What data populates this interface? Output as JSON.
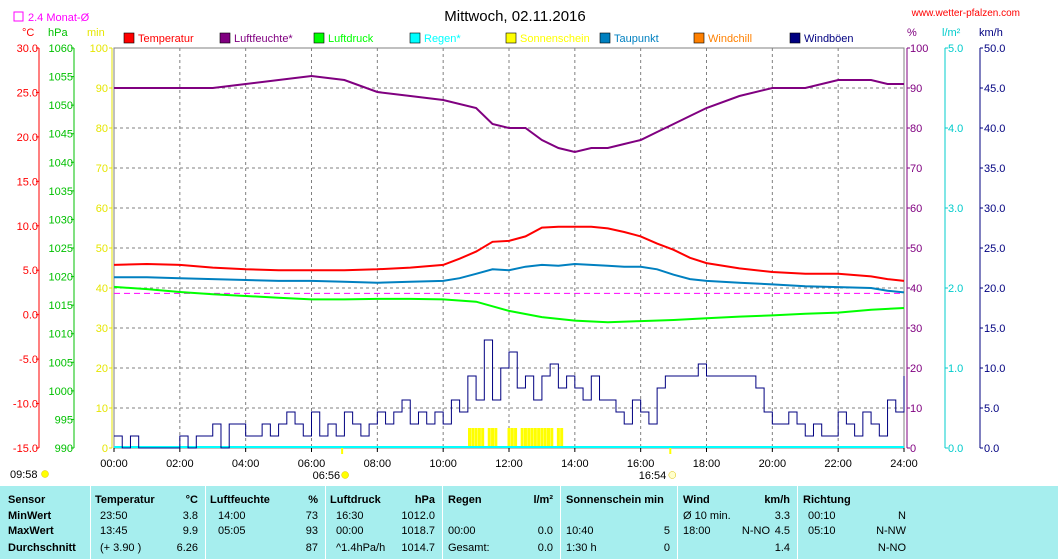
{
  "chart_data": {
    "type": "line",
    "title": "Mittwoch, 02.11.2016",
    "website": "www.wetter-pfalzen.com",
    "monthly_avg_label": "2.4 Monat-Ø",
    "monthly_avg_value": 2.4,
    "x_tick_labels": [
      "00:00",
      "02:00",
      "04:00",
      "06:00",
      "08:00",
      "10:00",
      "12:00",
      "14:00",
      "16:00",
      "18:00",
      "20:00",
      "22:00",
      "24:00"
    ],
    "xlim": [
      0,
      24
    ],
    "sunrise": "06:56",
    "sunset": "16:54",
    "sunrise_h": 6.93,
    "sunset_h": 16.9,
    "moonrise": "09:58",
    "moonset": "",
    "axes": {
      "temp": {
        "unit": "°C",
        "min": -15,
        "max": 30,
        "step": 5,
        "labels": [
          "-15.0",
          "-10.0",
          "-5.0",
          "0.0",
          "5.0",
          "10.0",
          "15.0",
          "20.0",
          "25.0",
          "30.0"
        ],
        "color": "#ff0000"
      },
      "press": {
        "unit": "hPa",
        "min": 990,
        "max": 1060,
        "step": 5,
        "labels": [
          "990",
          "995",
          "1000",
          "1005",
          "1010",
          "1015",
          "1020",
          "1025",
          "1030",
          "1035",
          "1040",
          "1045",
          "1050",
          "1055",
          "1060"
        ],
        "color": "#00c000"
      },
      "sun": {
        "unit": "min",
        "min": 0,
        "max": 100,
        "step": 10,
        "labels": [
          "0",
          "10",
          "20",
          "30",
          "40",
          "50",
          "60",
          "70",
          "80",
          "90",
          "100"
        ],
        "color": "#e6e600"
      },
      "hum": {
        "unit": "%",
        "min": 0,
        "max": 100,
        "step": 10,
        "labels": [
          "0",
          "10",
          "20",
          "30",
          "40",
          "50",
          "60",
          "70",
          "80",
          "90",
          "100"
        ],
        "color": "#800080"
      },
      "rain": {
        "unit": "l/m²",
        "min": 0,
        "max": 5,
        "step": 1,
        "labels": [
          "0.0",
          "1.0",
          "2.0",
          "3.0",
          "4.0",
          "5.0"
        ],
        "color": "#00cccc"
      },
      "wind": {
        "unit": "km/h",
        "min": 0,
        "max": 50,
        "step": 5,
        "labels": [
          "0.0",
          "5.0",
          "10.0",
          "15.0",
          "20.0",
          "25.0",
          "30.0",
          "35.0",
          "40.0",
          "45.0",
          "50.0"
        ],
        "color": "#000080"
      }
    },
    "legend": [
      {
        "name": "Temperatur",
        "color": "#ff0000"
      },
      {
        "name": "Luftfeuchte*",
        "color": "#800080"
      },
      {
        "name": "Luftdruck",
        "color": "#00ff00"
      },
      {
        "name": "Regen*",
        "color": "#00ffff"
      },
      {
        "name": "Sonnenschein",
        "color": "#ffff00"
      },
      {
        "name": "Taupunkt",
        "color": "#0080c0"
      },
      {
        "name": "Windchill",
        "color": "#ff8000"
      },
      {
        "name": "Windböen",
        "color": "#000080"
      }
    ],
    "series": [
      {
        "name": "Temperatur",
        "axis": "temp",
        "color": "#ff0000",
        "x": [
          0,
          1,
          2,
          3,
          4,
          5,
          6,
          7,
          8,
          9,
          10,
          10.5,
          11,
          11.5,
          12,
          12.5,
          13,
          13.5,
          14,
          14.5,
          15,
          15.5,
          16,
          16.5,
          17,
          17.5,
          18,
          19,
          20,
          21,
          22,
          23,
          23.5,
          24
        ],
        "y": [
          5.6,
          5.7,
          5.6,
          5.3,
          5.1,
          5.0,
          5.0,
          5.0,
          5.1,
          5.3,
          5.6,
          6.3,
          7.1,
          8.2,
          8.3,
          8.8,
          9.8,
          9.9,
          9.9,
          9.9,
          9.7,
          9.3,
          8.8,
          8.0,
          7.3,
          6.4,
          5.8,
          5.2,
          4.8,
          4.6,
          4.6,
          4.3,
          4.0,
          3.8
        ]
      },
      {
        "name": "Luftfeuchte",
        "axis": "hum",
        "color": "#800080",
        "x": [
          0,
          1,
          2,
          3,
          4,
          5,
          6,
          7,
          8,
          9,
          10,
          11,
          11.5,
          12,
          12.5,
          13,
          13.5,
          14,
          14.5,
          15,
          15.5,
          16,
          16.5,
          17,
          17.5,
          18,
          19,
          20,
          21,
          22,
          23,
          23.5,
          24
        ],
        "y": [
          90,
          90,
          90,
          90,
          91,
          92,
          93,
          92,
          89,
          88,
          87,
          85,
          81,
          80,
          80,
          77,
          75,
          74,
          75,
          75,
          76,
          77,
          79,
          81,
          83,
          85,
          88,
          90,
          90,
          92,
          92,
          91,
          91
        ]
      },
      {
        "name": "Luftdruck",
        "axis": "press",
        "color": "#00ff00",
        "x": [
          0,
          1,
          2,
          3,
          4,
          5,
          6,
          7,
          8,
          9,
          10,
          11,
          12,
          13,
          14,
          15,
          16,
          17,
          18,
          19,
          20,
          21,
          22,
          23,
          24
        ],
        "y": [
          1018.2,
          1017.8,
          1017.3,
          1016.9,
          1016.6,
          1016.3,
          1016.0,
          1016.0,
          1016.1,
          1016.1,
          1016.0,
          1015.6,
          1014.0,
          1012.9,
          1012.3,
          1012.0,
          1012.2,
          1012.4,
          1012.7,
          1013.0,
          1013.2,
          1013.5,
          1013.7,
          1014.2,
          1014.5
        ]
      },
      {
        "name": "Taupunkt",
        "axis": "temp",
        "color": "#0080c0",
        "x": [
          0,
          1,
          2,
          3,
          4,
          5,
          6,
          7,
          8,
          9,
          10,
          10.5,
          11,
          11.5,
          12,
          12.5,
          13,
          13.5,
          14,
          14.5,
          15,
          15.5,
          16,
          16.5,
          17,
          17.5,
          18,
          19,
          20,
          21,
          22,
          23,
          23.5,
          24
        ],
        "y": [
          4.2,
          4.2,
          4.1,
          4.0,
          3.9,
          3.8,
          3.8,
          3.7,
          3.6,
          3.7,
          3.8,
          4.1,
          4.6,
          5.1,
          5.0,
          5.4,
          5.6,
          5.5,
          5.7,
          5.6,
          5.5,
          5.4,
          5.4,
          5.1,
          4.5,
          4.0,
          3.8,
          3.6,
          3.4,
          3.2,
          3.1,
          3.0,
          2.7,
          2.5
        ]
      }
    ],
    "monthly_avg_line_color": "#ff00ff",
    "wind_gusts": {
      "color": "#000080",
      "axis": "wind",
      "x": [
        0,
        0.25,
        0.5,
        0.75,
        1,
        1.25,
        1.5,
        1.75,
        2,
        2.25,
        2.5,
        2.75,
        3,
        3.25,
        3.5,
        3.75,
        4,
        4.25,
        4.5,
        4.75,
        5,
        5.25,
        5.5,
        5.75,
        6,
        6.25,
        6.5,
        6.75,
        7,
        7.25,
        7.5,
        7.75,
        8,
        8.25,
        8.5,
        8.75,
        9,
        9.25,
        9.5,
        9.75,
        10,
        10.25,
        10.5,
        10.75,
        11,
        11.25,
        11.5,
        11.75,
        12,
        12.25,
        12.5,
        12.75,
        13,
        13.25,
        13.5,
        13.75,
        14,
        14.25,
        14.5,
        14.75,
        15,
        15.25,
        15.5,
        15.75,
        16,
        16.25,
        16.5,
        16.75,
        17,
        17.25,
        17.5,
        17.75,
        18,
        18.25,
        18.5,
        18.75,
        19,
        19.25,
        19.5,
        19.75,
        20,
        20.25,
        20.5,
        20.75,
        21,
        21.25,
        21.5,
        21.75,
        22,
        22.25,
        22.5,
        22.75,
        23,
        23.25,
        23.5,
        23.75,
        24
      ],
      "y": [
        1.5,
        0,
        1.5,
        0,
        0,
        0,
        0,
        0,
        1.5,
        0,
        1.5,
        1.5,
        3,
        0,
        3,
        3,
        1.5,
        1.5,
        3,
        1.5,
        3,
        4.5,
        3,
        1.5,
        4.5,
        1.5,
        3,
        1.5,
        4.5,
        3,
        1.5,
        3,
        4.5,
        3,
        4.5,
        6,
        3,
        4.5,
        3,
        4.5,
        3,
        6,
        4.5,
        9,
        6,
        13.5,
        6,
        10,
        12,
        7.5,
        9,
        6,
        9,
        10.5,
        7.5,
        9,
        7.5,
        6,
        9,
        6,
        6,
        4.5,
        3,
        6,
        4.5,
        3,
        7.5,
        9,
        9,
        9,
        9,
        10.5,
        9,
        9,
        9,
        9,
        9,
        9,
        7.5,
        4.5,
        3,
        3,
        4.5,
        3,
        1.5,
        3,
        1.5,
        1.5,
        4.5,
        3,
        1.5,
        4.5,
        3,
        1.5,
        6,
        4.5,
        9
      ]
    },
    "sunshine_bars": {
      "color": "#ffff00",
      "axis": "sun",
      "x": [
        10.8,
        10.9,
        11.0,
        11.1,
        11.2,
        11.4,
        11.5,
        11.6,
        12.0,
        12.1,
        12.2,
        12.4,
        12.5,
        12.6,
        12.7,
        12.8,
        12.9,
        13.0,
        13.1,
        13.2,
        13.3,
        13.5,
        13.6
      ],
      "y": [
        5,
        5,
        5,
        5,
        5,
        5,
        5,
        5,
        5,
        5,
        5,
        5,
        5,
        5,
        5,
        5,
        5,
        5,
        5,
        5,
        5,
        5,
        5
      ]
    }
  },
  "stats": {
    "headers": {
      "sensor": "Sensor",
      "temp": "Temperatur",
      "temp_unit": "°C",
      "hum": "Luftfeuchte",
      "hum_unit": "%",
      "press": "Luftdruck",
      "press_unit": "hPa",
      "rain": "Regen",
      "rain_unit": "l/m²",
      "sun": "Sonnenschein min",
      "wind": "Wind",
      "wind_unit": "km/h",
      "dir": "Richtung"
    },
    "rows": [
      {
        "label": "MinWert",
        "temp_time": "23:50",
        "temp_val": "3.8",
        "hum_time": "14:00",
        "hum_val": "73",
        "press_time": "16:30",
        "press_val": "1012.0",
        "rain_time": "",
        "rain_val": "",
        "sun_time": "",
        "sun_val": "",
        "wind_time": "Ø 10 min.",
        "wind_dir": "",
        "wind_val": "3.3",
        "dir_time": "00:10",
        "dir_val": "N"
      },
      {
        "label": "MaxWert",
        "temp_time": "13:45",
        "temp_val": "9.9",
        "hum_time": "05:05",
        "hum_val": "93",
        "press_time": "00:00",
        "press_val": "1018.7",
        "rain_time": "00:00",
        "rain_val": "0.0",
        "sun_time": "10:40",
        "sun_val": "5",
        "wind_time": "18:00",
        "wind_dir": "N-NO",
        "wind_val": "4.5",
        "dir_time": "05:10",
        "dir_val": "N-NW"
      },
      {
        "label": "Durchschnitt",
        "temp_time": "(+ 3.90 )",
        "temp_val": "6.26",
        "hum_time": "",
        "hum_val": "87",
        "press_time": "^1.4hPa/h",
        "press_val": "1014.7",
        "rain_time": "Gesamt:",
        "rain_val": "0.0",
        "sun_time": "1:30 h",
        "sun_val": "0",
        "wind_time": "",
        "wind_dir": "",
        "wind_val": "1.4",
        "dir_time": "",
        "dir_val": "N-NO"
      }
    ]
  }
}
